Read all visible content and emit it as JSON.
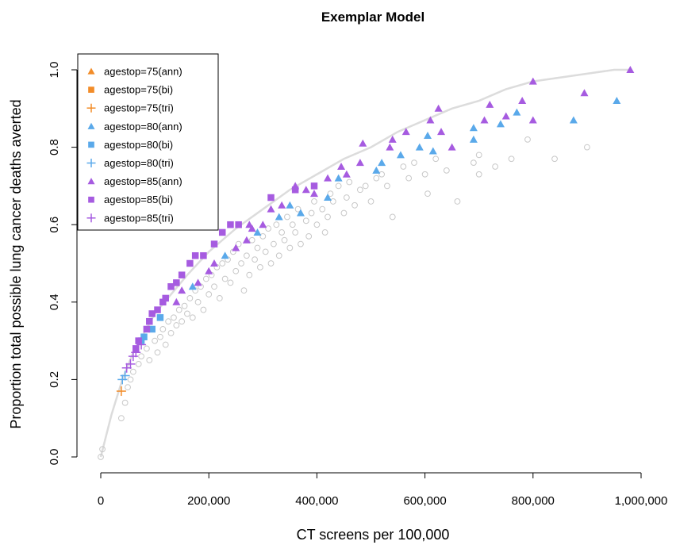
{
  "chart_data": {
    "type": "scatter",
    "title": "Exemplar Model",
    "xlabel": "CT screens per 100,000",
    "ylabel": "Proportion total possible lung cancer deaths averted",
    "xlim": [
      0,
      1000000
    ],
    "ylim": [
      0,
      1.0
    ],
    "x_ticks": [
      0,
      200000,
      400000,
      600000,
      800000,
      1000000
    ],
    "x_tick_labels": [
      "0",
      "200,000",
      "400,000",
      "600,000",
      "800,000",
      "1,000,000"
    ],
    "y_ticks": [
      0.0,
      0.2,
      0.4,
      0.6,
      0.8,
      1.0
    ],
    "y_tick_labels": [
      "0.0",
      "0.2",
      "0.4",
      "0.6",
      "0.8",
      "1.0"
    ],
    "grid": false,
    "legend_position": "top-left",
    "colors": {
      "agestop75": "#f28c28",
      "agestop80": "#5aa9ea",
      "agestop85": "#a65be0",
      "background_points": "#c8c8c8",
      "frontier": "#dcdcdc"
    },
    "legend": [
      {
        "label": "agestop=75(ann)",
        "color": "#f28c28",
        "marker": "triangle"
      },
      {
        "label": "agestop=75(bi)",
        "color": "#f28c28",
        "marker": "square"
      },
      {
        "label": "agestop=75(tri)",
        "color": "#f28c28",
        "marker": "plus"
      },
      {
        "label": "agestop=80(ann)",
        "color": "#5aa9ea",
        "marker": "triangle"
      },
      {
        "label": "agestop=80(bi)",
        "color": "#5aa9ea",
        "marker": "square"
      },
      {
        "label": "agestop=80(tri)",
        "color": "#5aa9ea",
        "marker": "plus"
      },
      {
        "label": "agestop=85(ann)",
        "color": "#a65be0",
        "marker": "triangle"
      },
      {
        "label": "agestop=85(bi)",
        "color": "#a65be0",
        "marker": "square"
      },
      {
        "label": "agestop=85(tri)",
        "color": "#a65be0",
        "marker": "plus"
      }
    ],
    "frontier": {
      "x": [
        0,
        20000,
        40000,
        60000,
        80000,
        100000,
        130000,
        160000,
        200000,
        250000,
        300000,
        350000,
        400000,
        450000,
        500000,
        550000,
        600000,
        650000,
        700000,
        750000,
        800000,
        850000,
        900000,
        950000,
        980000
      ],
      "y": [
        0.0,
        0.11,
        0.2,
        0.27,
        0.32,
        0.37,
        0.42,
        0.47,
        0.53,
        0.59,
        0.64,
        0.69,
        0.73,
        0.77,
        0.8,
        0.84,
        0.87,
        0.9,
        0.92,
        0.95,
        0.97,
        0.98,
        0.99,
        1.0,
        1.0
      ]
    },
    "series": [
      {
        "name": "agestop=75(tri)",
        "marker": "plus",
        "color": "#f28c28",
        "points": [
          [
            38000,
            0.17
          ]
        ]
      },
      {
        "name": "agestop=80(ann)",
        "marker": "triangle",
        "color": "#5aa9ea",
        "points": [
          [
            170000,
            0.44
          ],
          [
            230000,
            0.52
          ],
          [
            290000,
            0.58
          ],
          [
            330000,
            0.62
          ],
          [
            350000,
            0.65
          ],
          [
            370000,
            0.63
          ],
          [
            420000,
            0.67
          ],
          [
            440000,
            0.72
          ],
          [
            510000,
            0.74
          ],
          [
            520000,
            0.76
          ],
          [
            555000,
            0.78
          ],
          [
            590000,
            0.8
          ],
          [
            605000,
            0.83
          ],
          [
            615000,
            0.79
          ],
          [
            690000,
            0.85
          ],
          [
            690000,
            0.82
          ],
          [
            740000,
            0.86
          ],
          [
            770000,
            0.89
          ],
          [
            875000,
            0.87
          ],
          [
            955000,
            0.92
          ]
        ]
      },
      {
        "name": "agestop=80(bi)",
        "marker": "square",
        "color": "#5aa9ea",
        "points": [
          [
            75000,
            0.3
          ],
          [
            80000,
            0.31
          ],
          [
            95000,
            0.33
          ],
          [
            110000,
            0.36
          ]
        ]
      },
      {
        "name": "agestop=80(tri)",
        "marker": "plus",
        "color": "#5aa9ea",
        "points": [
          [
            40000,
            0.2
          ],
          [
            45000,
            0.21
          ]
        ]
      },
      {
        "name": "agestop=85(ann)",
        "marker": "triangle",
        "color": "#a65be0",
        "points": [
          [
            140000,
            0.4
          ],
          [
            150000,
            0.43
          ],
          [
            180000,
            0.45
          ],
          [
            200000,
            0.48
          ],
          [
            210000,
            0.5
          ],
          [
            250000,
            0.54
          ],
          [
            270000,
            0.56
          ],
          [
            275000,
            0.6
          ],
          [
            280000,
            0.59
          ],
          [
            300000,
            0.6
          ],
          [
            315000,
            0.64
          ],
          [
            335000,
            0.65
          ],
          [
            360000,
            0.7
          ],
          [
            380000,
            0.69
          ],
          [
            395000,
            0.68
          ],
          [
            420000,
            0.72
          ],
          [
            445000,
            0.75
          ],
          [
            455000,
            0.73
          ],
          [
            480000,
            0.76
          ],
          [
            485000,
            0.81
          ],
          [
            535000,
            0.8
          ],
          [
            540000,
            0.82
          ],
          [
            565000,
            0.84
          ],
          [
            610000,
            0.87
          ],
          [
            625000,
            0.9
          ],
          [
            630000,
            0.84
          ],
          [
            650000,
            0.8
          ],
          [
            710000,
            0.87
          ],
          [
            720000,
            0.91
          ],
          [
            750000,
            0.88
          ],
          [
            780000,
            0.92
          ],
          [
            800000,
            0.87
          ],
          [
            800000,
            0.97
          ],
          [
            895000,
            0.94
          ],
          [
            980000,
            1.0
          ]
        ]
      },
      {
        "name": "agestop=85(bi)",
        "marker": "square",
        "color": "#a65be0",
        "points": [
          [
            65000,
            0.28
          ],
          [
            70000,
            0.3
          ],
          [
            85000,
            0.33
          ],
          [
            90000,
            0.35
          ],
          [
            95000,
            0.37
          ],
          [
            105000,
            0.38
          ],
          [
            115000,
            0.4
          ],
          [
            120000,
            0.41
          ],
          [
            130000,
            0.44
          ],
          [
            140000,
            0.45
          ],
          [
            150000,
            0.47
          ],
          [
            165000,
            0.5
          ],
          [
            175000,
            0.52
          ],
          [
            190000,
            0.52
          ],
          [
            210000,
            0.55
          ],
          [
            225000,
            0.58
          ],
          [
            240000,
            0.6
          ],
          [
            255000,
            0.6
          ],
          [
            315000,
            0.67
          ],
          [
            360000,
            0.69
          ],
          [
            395000,
            0.7
          ]
        ]
      },
      {
        "name": "agestop=85(tri)",
        "marker": "plus",
        "color": "#a65be0",
        "points": [
          [
            48000,
            0.23
          ],
          [
            55000,
            0.24
          ],
          [
            60000,
            0.26
          ],
          [
            65000,
            0.27
          ],
          [
            75000,
            0.29
          ]
        ]
      }
    ],
    "background_points": [
      [
        0,
        0.0
      ],
      [
        3000,
        0.02
      ],
      [
        38000,
        0.1
      ],
      [
        45000,
        0.14
      ],
      [
        50000,
        0.18
      ],
      [
        55000,
        0.2
      ],
      [
        60000,
        0.22
      ],
      [
        70000,
        0.24
      ],
      [
        75000,
        0.26
      ],
      [
        85000,
        0.28
      ],
      [
        90000,
        0.25
      ],
      [
        100000,
        0.3
      ],
      [
        105000,
        0.27
      ],
      [
        110000,
        0.31
      ],
      [
        115000,
        0.33
      ],
      [
        120000,
        0.29
      ],
      [
        125000,
        0.35
      ],
      [
        130000,
        0.32
      ],
      [
        135000,
        0.36
      ],
      [
        140000,
        0.34
      ],
      [
        145000,
        0.38
      ],
      [
        150000,
        0.35
      ],
      [
        155000,
        0.39
      ],
      [
        160000,
        0.37
      ],
      [
        165000,
        0.41
      ],
      [
        170000,
        0.36
      ],
      [
        175000,
        0.43
      ],
      [
        180000,
        0.4
      ],
      [
        185000,
        0.44
      ],
      [
        190000,
        0.38
      ],
      [
        195000,
        0.46
      ],
      [
        200000,
        0.42
      ],
      [
        205000,
        0.47
      ],
      [
        210000,
        0.44
      ],
      [
        215000,
        0.49
      ],
      [
        220000,
        0.41
      ],
      [
        225000,
        0.5
      ],
      [
        230000,
        0.46
      ],
      [
        235000,
        0.51
      ],
      [
        240000,
        0.45
      ],
      [
        245000,
        0.53
      ],
      [
        250000,
        0.48
      ],
      [
        255000,
        0.55
      ],
      [
        260000,
        0.5
      ],
      [
        265000,
        0.43
      ],
      [
        270000,
        0.52
      ],
      [
        275000,
        0.47
      ],
      [
        280000,
        0.56
      ],
      [
        285000,
        0.51
      ],
      [
        290000,
        0.54
      ],
      [
        295000,
        0.49
      ],
      [
        300000,
        0.57
      ],
      [
        305000,
        0.53
      ],
      [
        310000,
        0.59
      ],
      [
        315000,
        0.5
      ],
      [
        320000,
        0.55
      ],
      [
        325000,
        0.6
      ],
      [
        330000,
        0.52
      ],
      [
        335000,
        0.58
      ],
      [
        340000,
        0.56
      ],
      [
        345000,
        0.62
      ],
      [
        350000,
        0.54
      ],
      [
        355000,
        0.6
      ],
      [
        360000,
        0.58
      ],
      [
        365000,
        0.64
      ],
      [
        370000,
        0.55
      ],
      [
        380000,
        0.61
      ],
      [
        385000,
        0.57
      ],
      [
        390000,
        0.63
      ],
      [
        395000,
        0.66
      ],
      [
        400000,
        0.6
      ],
      [
        410000,
        0.64
      ],
      [
        415000,
        0.58
      ],
      [
        420000,
        0.62
      ],
      [
        425000,
        0.68
      ],
      [
        430000,
        0.66
      ],
      [
        440000,
        0.7
      ],
      [
        450000,
        0.63
      ],
      [
        455000,
        0.67
      ],
      [
        460000,
        0.71
      ],
      [
        470000,
        0.65
      ],
      [
        480000,
        0.69
      ],
      [
        490000,
        0.7
      ],
      [
        500000,
        0.66
      ],
      [
        510000,
        0.72
      ],
      [
        520000,
        0.73
      ],
      [
        530000,
        0.7
      ],
      [
        540000,
        0.62
      ],
      [
        560000,
        0.75
      ],
      [
        570000,
        0.72
      ],
      [
        580000,
        0.76
      ],
      [
        600000,
        0.73
      ],
      [
        605000,
        0.68
      ],
      [
        620000,
        0.77
      ],
      [
        640000,
        0.74
      ],
      [
        660000,
        0.66
      ],
      [
        690000,
        0.76
      ],
      [
        700000,
        0.73
      ],
      [
        700000,
        0.78
      ],
      [
        730000,
        0.75
      ],
      [
        760000,
        0.77
      ],
      [
        790000,
        0.82
      ],
      [
        840000,
        0.77
      ],
      [
        900000,
        0.8
      ]
    ]
  }
}
